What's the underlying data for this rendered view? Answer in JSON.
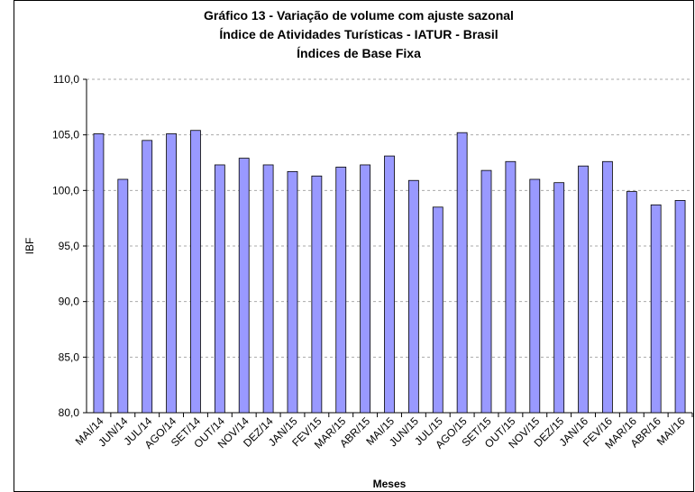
{
  "chart_data": {
    "type": "bar",
    "title": [
      "Gráfico 13 - Variação de volume com ajuste sazonal",
      "Índice de Atividades Turísticas - IATUR - Brasil",
      "Índices de Base Fixa"
    ],
    "x_label": "Meses",
    "y_label": "IBF",
    "categories": [
      "MAI/14",
      "JUN/14",
      "JUL/14",
      "AGO/14",
      "SET/14",
      "OUT/14",
      "NOV/14",
      "DEZ/14",
      "JAN/15",
      "FEV/15",
      "MAR/15",
      "ABR/15",
      "MAI/15",
      "JUN/15",
      "JUL/15",
      "AGO/15",
      "SET/15",
      "OUT/15",
      "NOV/15",
      "DEZ/15",
      "JAN/16",
      "FEV/16",
      "MAR/16",
      "ABR/16",
      "MAI/16"
    ],
    "values": [
      105.1,
      101.0,
      104.5,
      105.1,
      105.4,
      102.3,
      102.9,
      102.3,
      101.7,
      101.3,
      102.1,
      102.3,
      103.1,
      100.9,
      98.5,
      105.2,
      101.8,
      102.6,
      101.0,
      100.7,
      102.2,
      102.6,
      99.9,
      98.7,
      99.1
    ],
    "color": "#9999ff",
    "ylim": [
      80,
      110
    ],
    "yticks": [
      {
        "value": 80,
        "label": "80,0"
      },
      {
        "value": 85,
        "label": "85,0"
      },
      {
        "value": 90,
        "label": "90,0"
      },
      {
        "value": 95,
        "label": "95,0"
      },
      {
        "value": 100,
        "label": "100,0"
      },
      {
        "value": 105,
        "label": "105,0"
      },
      {
        "value": 110,
        "label": "110,0"
      }
    ],
    "grid": true
  }
}
